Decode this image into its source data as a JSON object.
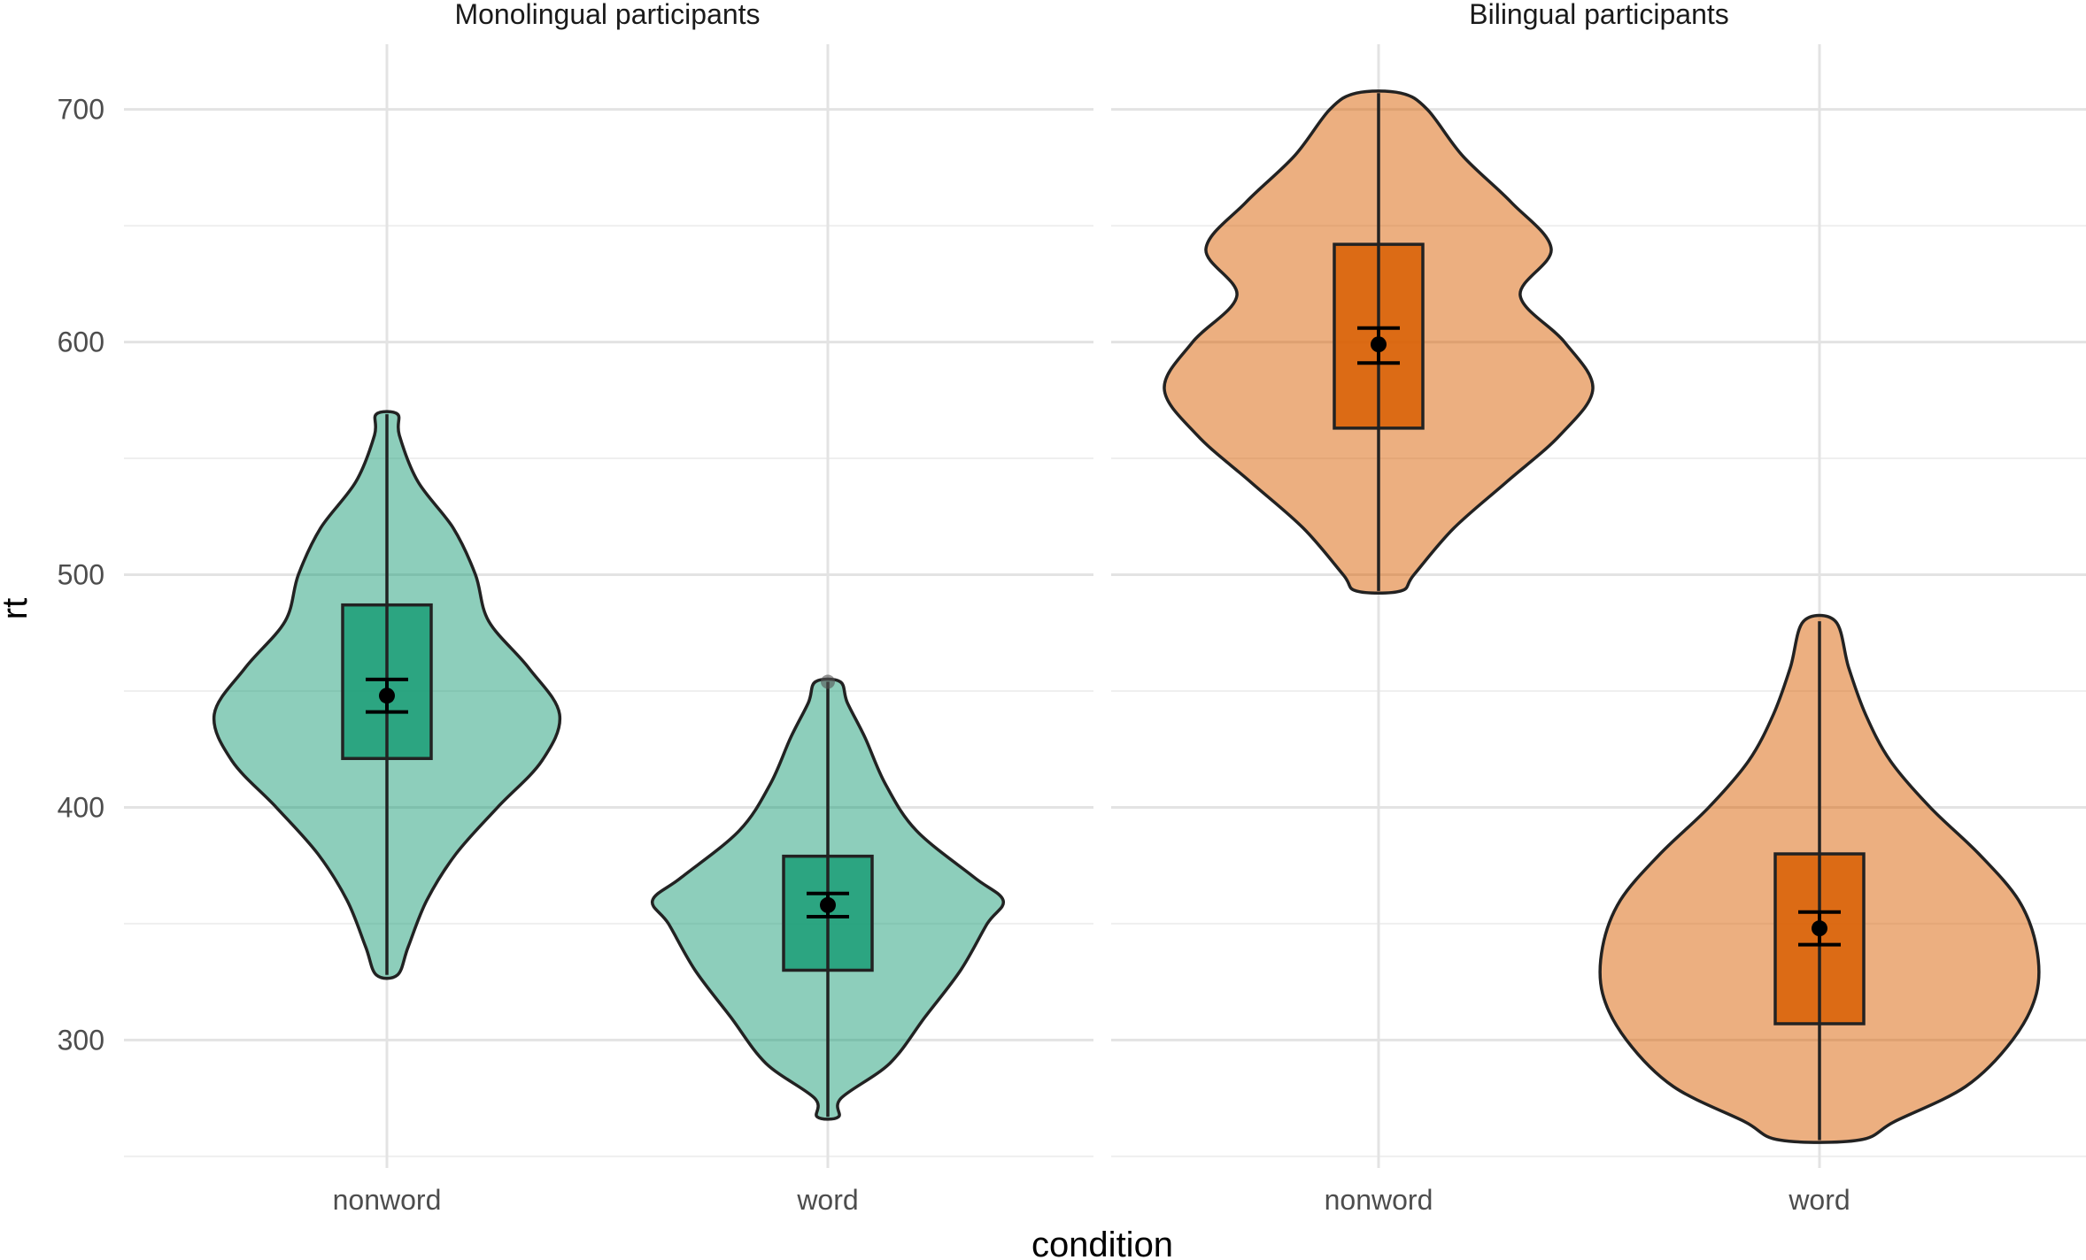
{
  "chart_data": {
    "type": "violin",
    "xlabel": "condition",
    "ylabel": "rt",
    "ylim": [
      245,
      728
    ],
    "yticks": [
      300,
      400,
      500,
      600,
      700
    ],
    "categories": [
      "nonword",
      "word"
    ],
    "panels": [
      {
        "title": "Monolingual participants",
        "color": "#1b9e77",
        "groups": [
          {
            "category": "nonword",
            "box": {
              "q1": 421,
              "median": 448,
              "q3": 487,
              "min": 328,
              "max": 569
            },
            "mean": 448,
            "ci": [
              441,
              455
            ],
            "outliers": [],
            "density": {
              "y": [
                328,
                340,
                360,
                380,
                400,
                420,
                440,
                460,
                480,
                500,
                520,
                540,
                560,
                569
              ],
              "halfwidth": [
                12,
                24,
                45,
                78,
                125,
                175,
                195,
                160,
                115,
                100,
                75,
                35,
                14,
                12
              ]
            }
          },
          {
            "category": "word",
            "box": {
              "q1": 330,
              "median": 358,
              "q3": 379,
              "min": 267,
              "max": 454
            },
            "mean": 358,
            "ci": [
              353,
              363
            ],
            "outliers": [
              454
            ],
            "density": {
              "y": [
                267,
                275,
                290,
                310,
                330,
                350,
                360,
                370,
                390,
                410,
                430,
                445,
                454
              ],
              "halfwidth": [
                12,
                15,
                70,
                110,
                150,
                180,
                198,
                165,
                100,
                65,
                42,
                22,
                14
              ]
            }
          }
        ]
      },
      {
        "title": "Bilingual participants",
        "color": "#d95f02",
        "groups": [
          {
            "category": "nonword",
            "box": {
              "q1": 563,
              "median": 601,
              "q3": 642,
              "min": 493,
              "max": 707
            },
            "mean": 599,
            "ci": [
              591,
              606
            ],
            "outliers": [],
            "density": {
              "y": [
                493,
                500,
                520,
                540,
                560,
                580,
                600,
                620,
                640,
                660,
                680,
                700,
                707
              ],
              "halfwidth": [
                25,
                40,
                85,
                145,
                205,
                242,
                210,
                160,
                195,
                150,
                95,
                55,
                25
              ]
            }
          },
          {
            "category": "word",
            "box": {
              "q1": 307,
              "median": 349,
              "q3": 380,
              "min": 257,
              "max": 480
            },
            "mean": 348,
            "ci": [
              341,
              355
            ],
            "outliers": [],
            "density": {
              "y": [
                257,
                265,
                280,
                300,
                320,
                340,
                360,
                380,
                400,
                420,
                440,
                460,
                480
              ],
              "halfwidth": [
                45,
                85,
                165,
                218,
                245,
                245,
                225,
                180,
                125,
                80,
                52,
                33,
                18
              ]
            }
          }
        ]
      }
    ]
  }
}
